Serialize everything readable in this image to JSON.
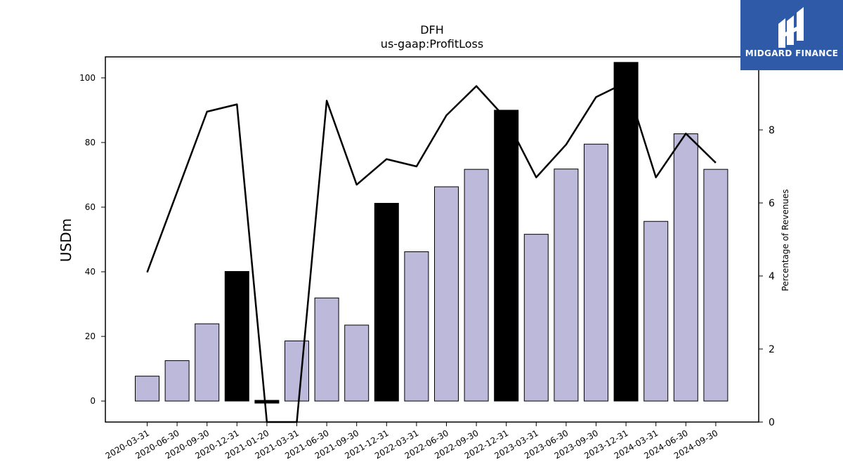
{
  "logo": {
    "text": "MIDGARD FINANCE",
    "icon": "midgard-logo-icon",
    "background": "#2e5aa8"
  },
  "chart_data": {
    "type": "bar",
    "title": "DFH",
    "subtitle": "us-gaap:ProfitLoss",
    "ylabel": "USDm",
    "y2label": "Percentage of Revenues",
    "ylim": [
      -6.5,
      106.5
    ],
    "y2lim": [
      0,
      10.0
    ],
    "yticks": [
      0,
      20,
      40,
      60,
      80,
      100
    ],
    "y2ticks": [
      0,
      2,
      4,
      6,
      8
    ],
    "categories": [
      "2020-03-31",
      "2020-06-30",
      "2020-09-30",
      "2020-12-31",
      "2021-01-20",
      "2021-03-31",
      "2021-06-30",
      "2021-09-30",
      "2021-12-31",
      "2022-03-31",
      "2022-06-30",
      "2022-09-30",
      "2022-12-31",
      "2023-03-31",
      "2023-06-30",
      "2023-09-30",
      "2023-12-31",
      "2024-03-31",
      "2024-06-30",
      "2024-09-30"
    ],
    "series": [
      {
        "kind": "bar",
        "axis": "left",
        "values": [
          7.7,
          12.5,
          23.9,
          40.1,
          -0.6,
          18.6,
          31.9,
          23.5,
          61.2,
          46.2,
          66.3,
          71.7,
          90.0,
          51.6,
          71.8,
          79.5,
          104.8,
          55.6,
          82.7,
          71.7
        ],
        "annual": [
          false,
          false,
          false,
          true,
          true,
          false,
          false,
          false,
          true,
          false,
          false,
          false,
          true,
          false,
          false,
          false,
          true,
          false,
          false,
          false
        ]
      },
      {
        "kind": "line",
        "axis": "right",
        "values": [
          4.1,
          6.3,
          8.5,
          8.7,
          0.0,
          0.0,
          8.8,
          6.5,
          7.2,
          7.0,
          8.4,
          9.2,
          8.3,
          6.7,
          7.6,
          8.9,
          9.3,
          6.7,
          7.9,
          7.1
        ]
      }
    ],
    "colors": {
      "bar_quarterly": "#bcb9da",
      "bar_annual": "#000000",
      "line": "#000000"
    },
    "grid": false
  }
}
